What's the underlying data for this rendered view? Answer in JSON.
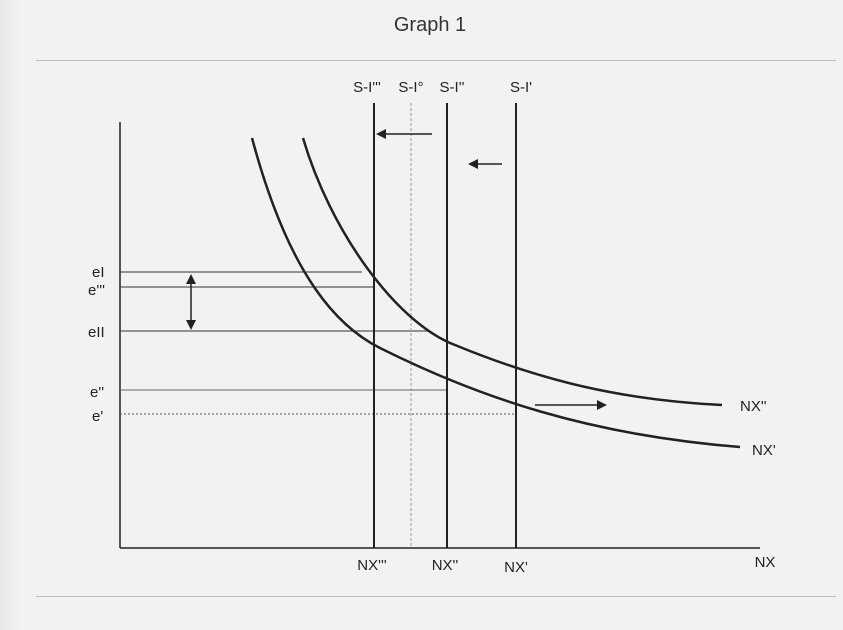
{
  "title": "Graph 1",
  "supply_lines": [
    {
      "label": "S-I'''",
      "x_label": "NX'''",
      "style": "solid"
    },
    {
      "label": "S-I°",
      "x_label": "",
      "style": "dashed"
    },
    {
      "label": "S-I''",
      "x_label": "NX''",
      "style": "solid"
    },
    {
      "label": "S-I'",
      "x_label": "NX'",
      "style": "solid"
    }
  ],
  "curves": [
    {
      "label": "NX''"
    },
    {
      "label": "NX'"
    }
  ],
  "exchange_levels": [
    {
      "label": "eI"
    },
    {
      "label": "e'''"
    },
    {
      "label": "eII"
    },
    {
      "label": "e''"
    },
    {
      "label": "e'"
    }
  ],
  "x_axis_label": "NX",
  "colors": {
    "ink": "#222222",
    "light_line": "#888888",
    "background": "#f2f2f2"
  }
}
